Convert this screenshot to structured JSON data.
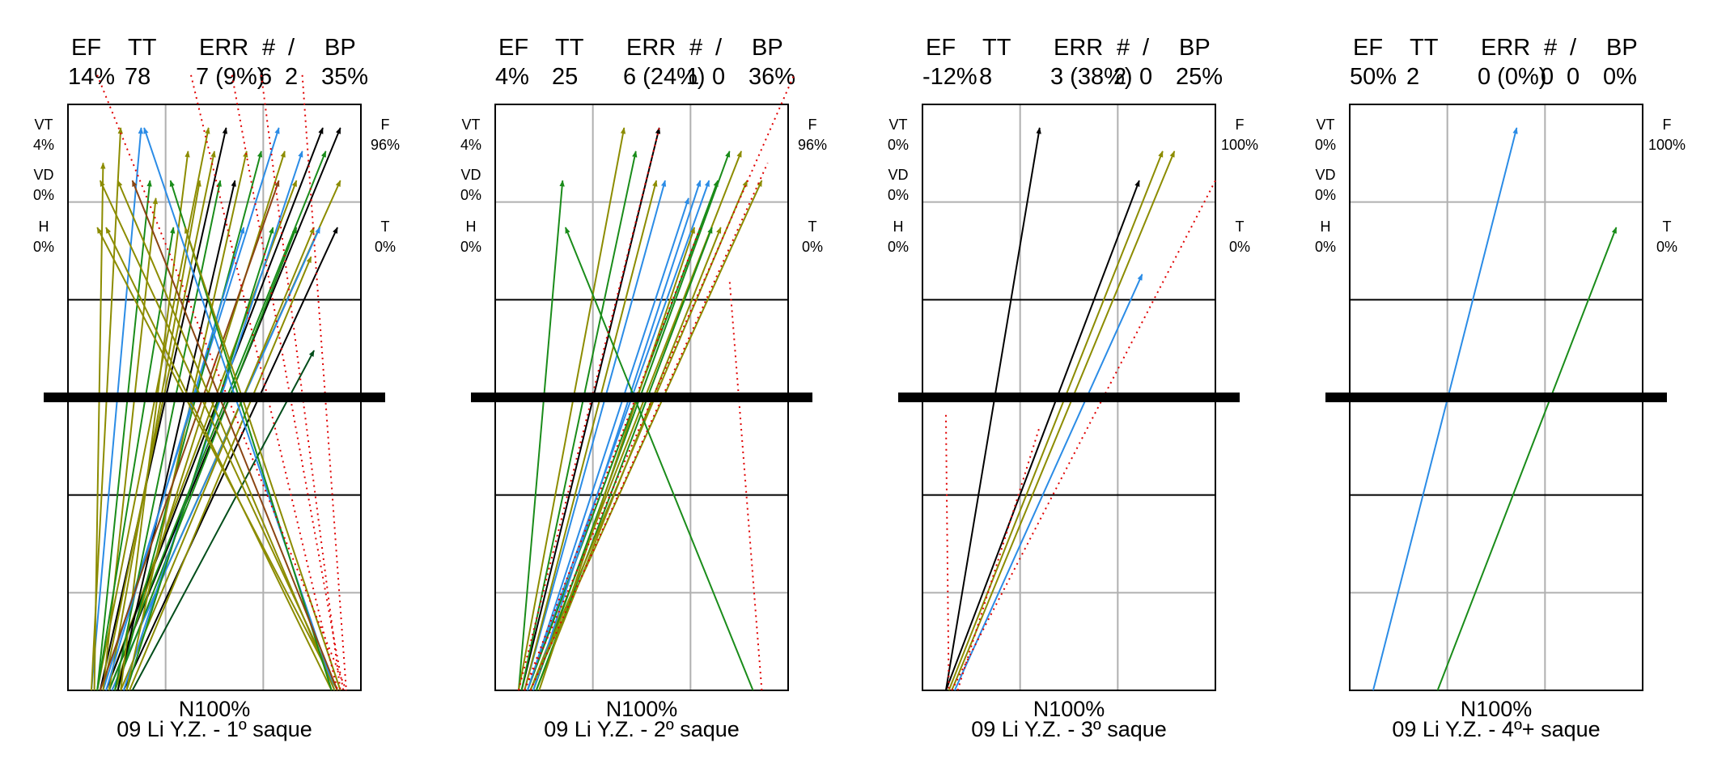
{
  "chart_data": [
    {
      "type": "serve-direction-chart",
      "title": "09 Li Y.Z.  - 1º saque",
      "bottom_label": "N100%",
      "header_labels": [
        "EF",
        "TT",
        "ERR",
        "#",
        "/",
        "BP"
      ],
      "header_values": [
        "14%",
        "78",
        "7 (9%)",
        "6",
        "2",
        "35%"
      ],
      "left_labels": [
        {
          "code": "VT",
          "pct": "4%"
        },
        {
          "code": "VD",
          "pct": "0%"
        },
        {
          "code": "H",
          "pct": "0%"
        }
      ],
      "right_labels": [
        {
          "code": "F",
          "pct": "96%"
        },
        {
          "code": "T",
          "pct": "0%"
        }
      ],
      "colors": {
        "olive": "#8c8c00",
        "green": "#1a8c1a",
        "blue": "#2b8ce6",
        "black": "#000000",
        "darkgreen": "#004d1a",
        "brown": "#8b4513",
        "error": "#e00000"
      },
      "serves": [
        {
          "from": [
            0.08,
            1.0
          ],
          "to": [
            0.25,
            0.04
          ],
          "color": "blue"
        },
        {
          "from": [
            0.08,
            1.0
          ],
          "to": [
            0.18,
            0.04
          ],
          "color": "olive"
        },
        {
          "from": [
            0.09,
            1.0
          ],
          "to": [
            0.12,
            0.1
          ],
          "color": "olive"
        },
        {
          "from": [
            0.1,
            1.0
          ],
          "to": [
            0.28,
            0.13
          ],
          "color": "green"
        },
        {
          "from": [
            0.1,
            1.0
          ],
          "to": [
            0.48,
            0.04
          ],
          "color": "olive"
        },
        {
          "from": [
            0.11,
            1.0
          ],
          "to": [
            0.54,
            0.04
          ],
          "color": "black"
        },
        {
          "from": [
            0.12,
            1.0
          ],
          "to": [
            0.5,
            0.08
          ],
          "color": "olive"
        },
        {
          "from": [
            0.12,
            1.0
          ],
          "to": [
            0.72,
            0.04
          ],
          "color": "blue"
        },
        {
          "from": [
            0.13,
            1.0
          ],
          "to": [
            0.78,
            0.13
          ],
          "color": "olive"
        },
        {
          "from": [
            0.13,
            1.0
          ],
          "to": [
            0.87,
            0.04
          ],
          "color": "black"
        },
        {
          "from": [
            0.14,
            1.0
          ],
          "to": [
            0.93,
            0.04
          ],
          "color": "black"
        },
        {
          "from": [
            0.14,
            1.0
          ],
          "to": [
            0.88,
            0.08
          ],
          "color": "green"
        },
        {
          "from": [
            0.15,
            1.0
          ],
          "to": [
            0.93,
            0.13
          ],
          "color": "olive"
        },
        {
          "from": [
            0.15,
            1.0
          ],
          "to": [
            0.86,
            0.21
          ],
          "color": "blue"
        },
        {
          "from": [
            0.16,
            1.0
          ],
          "to": [
            0.78,
            0.21
          ],
          "color": "green"
        },
        {
          "from": [
            0.16,
            1.0
          ],
          "to": [
            0.74,
            0.08
          ],
          "color": "olive"
        },
        {
          "from": [
            0.17,
            1.0
          ],
          "to": [
            0.66,
            0.08
          ],
          "color": "green"
        },
        {
          "from": [
            0.17,
            1.0
          ],
          "to": [
            0.57,
            0.13
          ],
          "color": "black"
        },
        {
          "from": [
            0.18,
            1.0
          ],
          "to": [
            0.41,
            0.08
          ],
          "color": "olive"
        },
        {
          "from": [
            0.18,
            1.0
          ],
          "to": [
            0.84,
            0.21
          ],
          "color": "olive"
        },
        {
          "from": [
            0.19,
            1.0
          ],
          "to": [
            0.92,
            0.21
          ],
          "color": "black"
        },
        {
          "from": [
            0.19,
            1.0
          ],
          "to": [
            0.8,
            0.08
          ],
          "color": "blue"
        },
        {
          "from": [
            0.2,
            1.0
          ],
          "to": [
            0.7,
            0.21
          ],
          "color": "green"
        },
        {
          "from": [
            0.2,
            1.0
          ],
          "to": [
            0.61,
            0.08
          ],
          "color": "olive"
        },
        {
          "from": [
            0.21,
            1.0
          ],
          "to": [
            0.83,
            0.26
          ],
          "color": "olive"
        },
        {
          "from": [
            0.22,
            1.0
          ],
          "to": [
            0.84,
            0.42
          ],
          "color": "darkgreen"
        },
        {
          "from": [
            0.12,
            1.0
          ],
          "to": [
            0.3,
            0.16
          ],
          "color": "olive"
        },
        {
          "from": [
            0.1,
            1.0
          ],
          "to": [
            0.36,
            0.21
          ],
          "color": "green"
        },
        {
          "from": [
            0.14,
            1.0
          ],
          "to": [
            0.45,
            0.13
          ],
          "color": "olive"
        },
        {
          "from": [
            0.16,
            1.0
          ],
          "to": [
            0.52,
            0.13
          ],
          "color": "green"
        },
        {
          "from": [
            0.13,
            1.0
          ],
          "to": [
            0.6,
            0.21
          ],
          "color": "blue"
        },
        {
          "from": [
            0.11,
            1.0
          ],
          "to": [
            0.72,
            0.13
          ],
          "color": "brown"
        },
        {
          "from": [
            0.92,
            1.0
          ],
          "to": [
            0.11,
            0.13
          ],
          "color": "olive"
        },
        {
          "from": [
            0.92,
            1.0
          ],
          "to": [
            0.1,
            0.21
          ],
          "color": "olive"
        },
        {
          "from": [
            0.91,
            1.0
          ],
          "to": [
            0.26,
            0.04
          ],
          "color": "blue"
        },
        {
          "from": [
            0.91,
            1.0
          ],
          "to": [
            0.17,
            0.13
          ],
          "color": "olive"
        },
        {
          "from": [
            0.9,
            1.0
          ],
          "to": [
            0.13,
            0.21
          ],
          "color": "olive"
        },
        {
          "from": [
            0.9,
            1.0
          ],
          "to": [
            0.35,
            0.13
          ],
          "color": "green"
        },
        {
          "from": [
            0.93,
            1.0
          ],
          "to": [
            0.4,
            0.21
          ],
          "color": "olive"
        },
        {
          "from": [
            0.92,
            1.0
          ],
          "to": [
            0.22,
            0.13
          ],
          "color": "brown"
        }
      ],
      "errors": [
        {
          "from": [
            0.1,
            -0.05
          ],
          "to": [
            0.95,
            1.0
          ]
        },
        {
          "from": [
            0.42,
            -0.05
          ],
          "to": [
            0.92,
            1.0
          ]
        },
        {
          "from": [
            0.56,
            -0.05
          ],
          "to": [
            0.94,
            1.0
          ]
        },
        {
          "from": [
            0.66,
            -0.05
          ],
          "to": [
            0.93,
            1.0
          ]
        },
        {
          "from": [
            0.8,
            -0.05
          ],
          "to": [
            0.95,
            1.0
          ]
        }
      ]
    },
    {
      "type": "serve-direction-chart",
      "title": "09 Li Y.Z.  - 2º saque",
      "bottom_label": "N100%",
      "header_labels": [
        "EF",
        "TT",
        "ERR",
        "#",
        "/",
        "BP"
      ],
      "header_values": [
        "4%",
        "25",
        "6 (24%)",
        "1",
        "0",
        "36%"
      ],
      "left_labels": [
        {
          "code": "VT",
          "pct": "4%"
        },
        {
          "code": "VD",
          "pct": "0%"
        },
        {
          "code": "H",
          "pct": "0%"
        }
      ],
      "right_labels": [
        {
          "code": "F",
          "pct": "96%"
        },
        {
          "code": "T",
          "pct": "0%"
        }
      ],
      "colors": {
        "olive": "#8c8c00",
        "green": "#1a8c1a",
        "blue": "#2b8ce6",
        "black": "#000000",
        "darkgreen": "#004d1a",
        "brown": "#8b4513",
        "error": "#e00000"
      },
      "serves": [
        {
          "from": [
            0.08,
            1.0
          ],
          "to": [
            0.23,
            0.13
          ],
          "color": "green"
        },
        {
          "from": [
            0.08,
            1.0
          ],
          "to": [
            0.44,
            0.04
          ],
          "color": "olive"
        },
        {
          "from": [
            0.09,
            1.0
          ],
          "to": [
            0.56,
            0.04
          ],
          "color": "black"
        },
        {
          "from": [
            0.09,
            1.0
          ],
          "to": [
            0.48,
            0.08
          ],
          "color": "green"
        },
        {
          "from": [
            0.1,
            1.0
          ],
          "to": [
            0.58,
            0.13
          ],
          "color": "blue"
        },
        {
          "from": [
            0.1,
            1.0
          ],
          "to": [
            0.55,
            0.13
          ],
          "color": "olive"
        },
        {
          "from": [
            0.11,
            1.0
          ],
          "to": [
            0.73,
            0.13
          ],
          "color": "blue"
        },
        {
          "from": [
            0.11,
            1.0
          ],
          "to": [
            0.76,
            0.13
          ],
          "color": "green"
        },
        {
          "from": [
            0.12,
            1.0
          ],
          "to": [
            0.84,
            0.08
          ],
          "color": "olive"
        },
        {
          "from": [
            0.12,
            1.0
          ],
          "to": [
            0.91,
            0.13
          ],
          "color": "olive"
        },
        {
          "from": [
            0.13,
            1.0
          ],
          "to": [
            0.8,
            0.08
          ],
          "color": "green"
        },
        {
          "from": [
            0.13,
            1.0
          ],
          "to": [
            0.7,
            0.13
          ],
          "color": "blue"
        },
        {
          "from": [
            0.14,
            1.0
          ],
          "to": [
            0.77,
            0.21
          ],
          "color": "olive"
        },
        {
          "from": [
            0.14,
            1.0
          ],
          "to": [
            0.74,
            0.21
          ],
          "color": "green"
        },
        {
          "from": [
            0.15,
            1.0
          ],
          "to": [
            0.68,
            0.21
          ],
          "color": "olive"
        },
        {
          "from": [
            0.12,
            1.0
          ],
          "to": [
            0.86,
            0.13
          ],
          "color": "olive"
        },
        {
          "from": [
            0.11,
            1.0
          ],
          "to": [
            0.66,
            0.16
          ],
          "color": "blue"
        },
        {
          "from": [
            0.88,
            1.0
          ],
          "to": [
            0.24,
            0.21
          ],
          "color": "green"
        }
      ],
      "errors": [
        {
          "from": [
            0.1,
            1.0
          ],
          "to": [
            1.02,
            -0.05
          ]
        },
        {
          "from": [
            0.12,
            1.0
          ],
          "to": [
            0.93,
            0.1
          ]
        },
        {
          "from": [
            0.08,
            1.0
          ],
          "to": [
            0.56,
            0.04
          ]
        },
        {
          "from": [
            0.1,
            1.0
          ],
          "to": [
            0.7,
            0.21
          ]
        },
        {
          "from": [
            0.91,
            1.0
          ],
          "to": [
            0.8,
            0.3
          ]
        }
      ]
    },
    {
      "type": "serve-direction-chart",
      "title": "09 Li Y.Z.  - 3º saque",
      "bottom_label": "N100%",
      "header_labels": [
        "EF",
        "TT",
        "ERR",
        "#",
        "/",
        "BP"
      ],
      "header_values": [
        "-12%",
        "8",
        "3 (38%)",
        "2",
        "0",
        "25%"
      ],
      "left_labels": [
        {
          "code": "VT",
          "pct": "0%"
        },
        {
          "code": "VD",
          "pct": "0%"
        },
        {
          "code": "H",
          "pct": "0%"
        }
      ],
      "right_labels": [
        {
          "code": "F",
          "pct": "100%"
        },
        {
          "code": "T",
          "pct": "0%"
        }
      ],
      "colors": {
        "olive": "#8c8c00",
        "green": "#1a8c1a",
        "blue": "#2b8ce6",
        "black": "#000000",
        "darkgreen": "#004d1a",
        "brown": "#8b4513",
        "error": "#e00000"
      },
      "serves": [
        {
          "from": [
            0.08,
            1.0
          ],
          "to": [
            0.4,
            0.04
          ],
          "color": "black"
        },
        {
          "from": [
            0.08,
            1.0
          ],
          "to": [
            0.74,
            0.13
          ],
          "color": "black"
        },
        {
          "from": [
            0.09,
            1.0
          ],
          "to": [
            0.82,
            0.08
          ],
          "color": "olive"
        },
        {
          "from": [
            0.1,
            1.0
          ],
          "to": [
            0.86,
            0.08
          ],
          "color": "olive"
        },
        {
          "from": [
            0.11,
            1.0
          ],
          "to": [
            0.75,
            0.29
          ],
          "color": "blue"
        }
      ],
      "errors": [
        {
          "from": [
            0.08,
            0.53
          ],
          "to": [
            0.09,
            1.0
          ]
        },
        {
          "from": [
            0.1,
            1.0
          ],
          "to": [
            1.0,
            0.13
          ]
        },
        {
          "from": [
            0.12,
            1.0
          ],
          "to": [
            0.4,
            0.55
          ]
        }
      ]
    },
    {
      "type": "serve-direction-chart",
      "title": "09 Li Y.Z.  - 4º+ saque",
      "bottom_label": "N100%",
      "header_labels": [
        "EF",
        "TT",
        "ERR",
        "#",
        "/",
        "BP"
      ],
      "header_values": [
        "50%",
        "2",
        "0 (0%)",
        "0",
        "0",
        "0%"
      ],
      "left_labels": [
        {
          "code": "VT",
          "pct": "0%"
        },
        {
          "code": "VD",
          "pct": "0%"
        },
        {
          "code": "H",
          "pct": "0%"
        }
      ],
      "right_labels": [
        {
          "code": "F",
          "pct": "100%"
        },
        {
          "code": "T",
          "pct": "0%"
        }
      ],
      "colors": {
        "olive": "#8c8c00",
        "green": "#1a8c1a",
        "blue": "#2b8ce6",
        "black": "#000000",
        "darkgreen": "#004d1a",
        "brown": "#8b4513",
        "error": "#e00000"
      },
      "serves": [
        {
          "from": [
            0.08,
            1.0
          ],
          "to": [
            0.57,
            0.04
          ],
          "color": "blue"
        },
        {
          "from": [
            0.3,
            1.0
          ],
          "to": [
            0.91,
            0.21
          ],
          "color": "green"
        }
      ],
      "errors": []
    }
  ]
}
